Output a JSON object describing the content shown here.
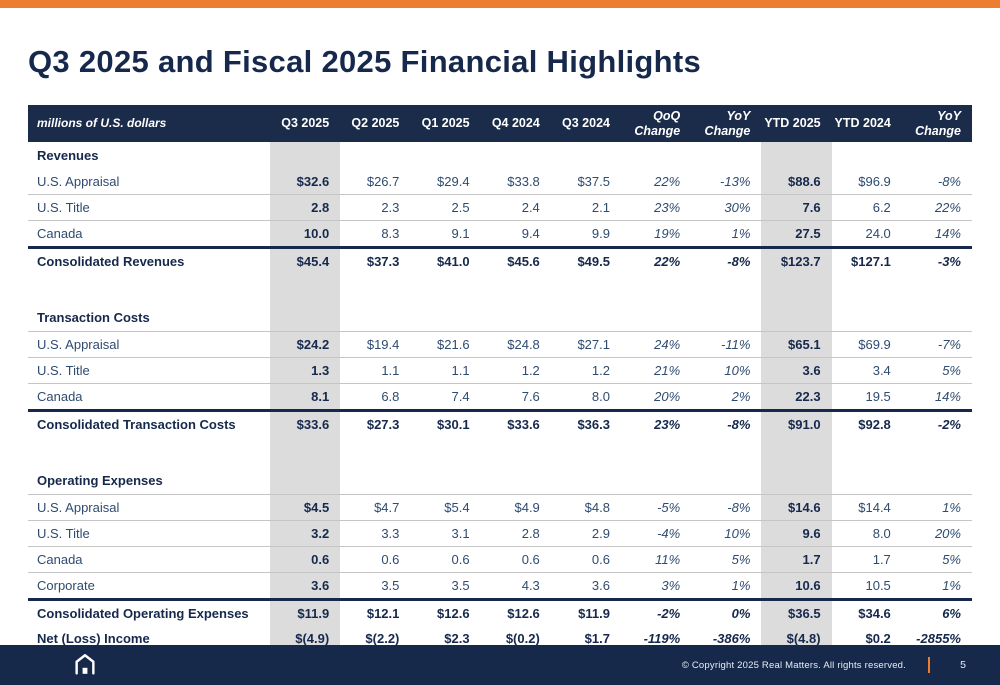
{
  "slide": {
    "title": "Q3 2025 and Fiscal 2025 Financial Highlights",
    "accent_color": "#ED7D2F",
    "navy_color": "#16294C",
    "highlight_color": "#DCDCDC"
  },
  "table": {
    "unit_label": "millions of U.S. dollars",
    "columns": [
      "Q3 2025",
      "Q2 2025",
      "Q1 2025",
      "Q4 2024",
      "Q3 2024",
      "QoQ\nChange",
      "YoY\nChange",
      "YTD 2025",
      "YTD 2024",
      "YoY\nChange"
    ],
    "highlight_columns": [
      0,
      7
    ],
    "percent_columns": [
      5,
      6,
      9
    ],
    "rows": [
      {
        "type": "section",
        "label": "Revenues",
        "underline": false
      },
      {
        "type": "data",
        "label": "U.S. Appraisal",
        "values": [
          "$32.6",
          "$26.7",
          "$29.4",
          "$33.8",
          "$37.5",
          "22%",
          "-13%",
          "$88.6",
          "$96.9",
          "-8%"
        ]
      },
      {
        "type": "data",
        "label": "U.S. Title",
        "values": [
          "2.8",
          "2.3",
          "2.5",
          "2.4",
          "2.1",
          "23%",
          "30%",
          "7.6",
          "6.2",
          "22%"
        ]
      },
      {
        "type": "data",
        "label": "Canada",
        "values": [
          "10.0",
          "8.3",
          "9.1",
          "9.4",
          "9.9",
          "19%",
          "1%",
          "27.5",
          "24.0",
          "14%"
        ]
      },
      {
        "type": "total",
        "label": "Consolidated Revenues",
        "values": [
          "$45.4",
          "$37.3",
          "$41.0",
          "$45.6",
          "$49.5",
          "22%",
          "-8%",
          "$123.7",
          "$127.1",
          "-3%"
        ]
      },
      {
        "type": "spacer"
      },
      {
        "type": "section",
        "label": "Transaction Costs",
        "underline": true
      },
      {
        "type": "data",
        "label": "U.S. Appraisal",
        "values": [
          "$24.2",
          "$19.4",
          "$21.6",
          "$24.8",
          "$27.1",
          "24%",
          "-11%",
          "$65.1",
          "$69.9",
          "-7%"
        ]
      },
      {
        "type": "data",
        "label": "U.S. Title",
        "values": [
          "1.3",
          "1.1",
          "1.1",
          "1.2",
          "1.2",
          "21%",
          "10%",
          "3.6",
          "3.4",
          "5%"
        ]
      },
      {
        "type": "data",
        "label": "Canada",
        "values": [
          "8.1",
          "6.8",
          "7.4",
          "7.6",
          "8.0",
          "20%",
          "2%",
          "22.3",
          "19.5",
          "14%"
        ]
      },
      {
        "type": "total",
        "label": "Consolidated Transaction Costs",
        "values": [
          "$33.6",
          "$27.3",
          "$30.1",
          "$33.6",
          "$36.3",
          "23%",
          "-8%",
          "$91.0",
          "$92.8",
          "-2%"
        ]
      },
      {
        "type": "spacer"
      },
      {
        "type": "section",
        "label": "Operating Expenses",
        "underline": true
      },
      {
        "type": "data",
        "label": "U.S. Appraisal",
        "values": [
          "$4.5",
          "$4.7",
          "$5.4",
          "$4.9",
          "$4.8",
          "-5%",
          "-8%",
          "$14.6",
          "$14.4",
          "1%"
        ]
      },
      {
        "type": "data",
        "label": "U.S. Title",
        "values": [
          "3.2",
          "3.3",
          "3.1",
          "2.8",
          "2.9",
          "-4%",
          "10%",
          "9.6",
          "8.0",
          "20%"
        ]
      },
      {
        "type": "data",
        "label": "Canada",
        "values": [
          "0.6",
          "0.6",
          "0.6",
          "0.6",
          "0.6",
          "11%",
          "5%",
          "1.7",
          "1.7",
          "5%"
        ]
      },
      {
        "type": "data",
        "label": "Corporate",
        "values": [
          "3.6",
          "3.5",
          "3.5",
          "4.3",
          "3.6",
          "3%",
          "1%",
          "10.6",
          "10.5",
          "1%"
        ]
      },
      {
        "type": "total",
        "label": "Consolidated Operating Expenses",
        "values": [
          "$11.9",
          "$12.1",
          "$12.6",
          "$12.6",
          "$11.9",
          "-2%",
          "0%",
          "$36.5",
          "$34.6",
          "6%"
        ]
      },
      {
        "type": "net",
        "label": "Net (Loss) Income",
        "values": [
          "$(4.9)",
          "$(2.2)",
          "$2.3",
          "$(0.2)",
          "$1.7",
          "-119%",
          "-386%",
          "$(4.8)",
          "$0.2",
          "-2855%"
        ]
      }
    ]
  },
  "footer": {
    "logo_icon": "real-matters-house-icon",
    "copyright": "© Copyright 2025 Real Matters. All rights reserved.",
    "page_number": "5"
  }
}
